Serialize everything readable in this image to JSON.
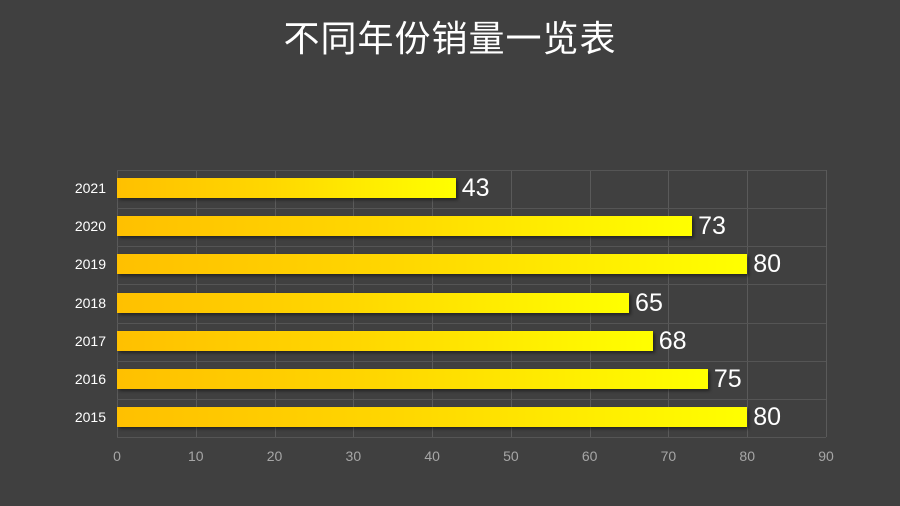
{
  "title": "不同年份销量一览表",
  "colors": {
    "background": "#404040",
    "bar_start": "#ffc000",
    "bar_end": "#ffff00",
    "gridline": "#595959",
    "label_text": "#ffffff",
    "axis_text": "#a6a6a6"
  },
  "chart_data": {
    "type": "bar",
    "orientation": "horizontal",
    "title": "不同年份销量一览表",
    "categories": [
      "2021",
      "2020",
      "2019",
      "2018",
      "2017",
      "2016",
      "2015"
    ],
    "values": [
      43,
      73,
      80,
      65,
      68,
      75,
      80
    ],
    "xlabel": "",
    "ylabel": "",
    "xlim": [
      0,
      90
    ],
    "xticks": [
      "0",
      "10",
      "20",
      "30",
      "40",
      "50",
      "60",
      "70",
      "80",
      "90"
    ],
    "data_labels": true,
    "grid": true,
    "legend": null
  }
}
